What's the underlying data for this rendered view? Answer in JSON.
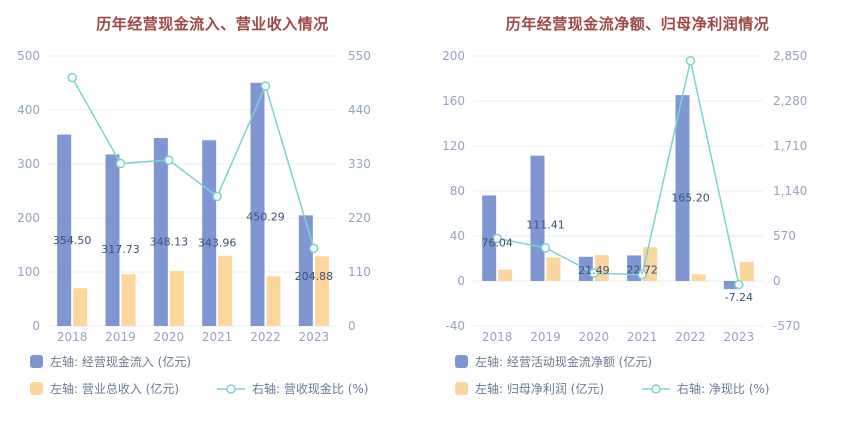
{
  "colors": {
    "bar_primary": "#7e97d3",
    "bar_secondary": "#fbd69d",
    "line": "#7fd2cf",
    "title": "#9e4747",
    "axis_text": "#98a3c0",
    "label_text": "#3f5272",
    "grid": "#ececec"
  },
  "chart_data": [
    {
      "type": "bar+line",
      "title": "历年经营现金流入、营业收入情况",
      "categories": [
        "2018",
        "2019",
        "2020",
        "2021",
        "2022",
        "2023"
      ],
      "series": [
        {
          "id": "operating-cash-inflow",
          "name": "左轴: 经营现金流入 (亿元)",
          "kind": "bar",
          "axis": "left",
          "color_key": "bar_primary",
          "values": [
            354.5,
            317.73,
            348.13,
            343.96,
            450.29,
            204.88
          ],
          "labels": [
            "354.50",
            "317.73",
            "348.13",
            "343.96",
            "450.29",
            "204.88"
          ]
        },
        {
          "id": "total-operating-revenue",
          "name": "左轴: 营业总收入 (亿元)",
          "kind": "bar",
          "axis": "left",
          "color_key": "bar_secondary",
          "values": [
            70,
            96,
            102,
            130,
            92,
            129
          ]
        },
        {
          "id": "revenue-cash-ratio",
          "name": "右轴: 营收现金比 (%)",
          "kind": "line",
          "axis": "right",
          "color_key": "line",
          "values": [
            506,
            331,
            338,
            264,
            489,
            158
          ]
        }
      ],
      "left_axis": {
        "min": 0,
        "max": 500,
        "tick_values": [
          0,
          100,
          200,
          300,
          400,
          500
        ],
        "tick_labels": [
          "0",
          "100",
          "200",
          "300",
          "400",
          "500"
        ]
      },
      "right_axis": {
        "min": 0,
        "max": 550,
        "tick_values": [
          0,
          110,
          220,
          330,
          440,
          550
        ],
        "tick_labels": [
          "0",
          "110",
          "220",
          "330",
          "440",
          "550"
        ]
      }
    },
    {
      "type": "bar+line",
      "title": "历年经营现金流净额、归母净利润情况",
      "categories": [
        "2018",
        "2019",
        "2020",
        "2021",
        "2022",
        "2023"
      ],
      "series": [
        {
          "id": "net-operating-cash-flow",
          "name": "左轴: 经营活动现金流净额 (亿元)",
          "kind": "bar",
          "axis": "left",
          "color_key": "bar_primary",
          "values": [
            76.04,
            111.41,
            21.49,
            22.72,
            165.2,
            -7.24
          ],
          "labels": [
            "76.04",
            "111.41",
            "21.49",
            "22.72",
            "165.20",
            "-7.24"
          ]
        },
        {
          "id": "net-profit-attributable",
          "name": "左轴: 归母净利润 (亿元)",
          "kind": "bar",
          "axis": "left",
          "color_key": "bar_secondary",
          "values": [
            10,
            21,
            23,
            30,
            6,
            17
          ]
        },
        {
          "id": "net-cash-ratio",
          "name": "右轴: 净现比 (%)",
          "kind": "line",
          "axis": "right",
          "color_key": "line",
          "values": [
            540,
            420,
            100,
            80,
            2790,
            -45
          ]
        }
      ],
      "left_axis": {
        "min": -40,
        "max": 200,
        "tick_values": [
          -40,
          0,
          40,
          80,
          120,
          160,
          200
        ],
        "tick_labels": [
          "-40",
          "0",
          "40",
          "80",
          "120",
          "160",
          "200"
        ]
      },
      "right_axis": {
        "min": -570,
        "max": 2850,
        "tick_values": [
          -570,
          0,
          570,
          1140,
          1710,
          2280,
          2850
        ],
        "tick_labels": [
          "-570",
          "0",
          "570",
          "1,140",
          "1,710",
          "2,280",
          "2,850"
        ]
      }
    }
  ]
}
